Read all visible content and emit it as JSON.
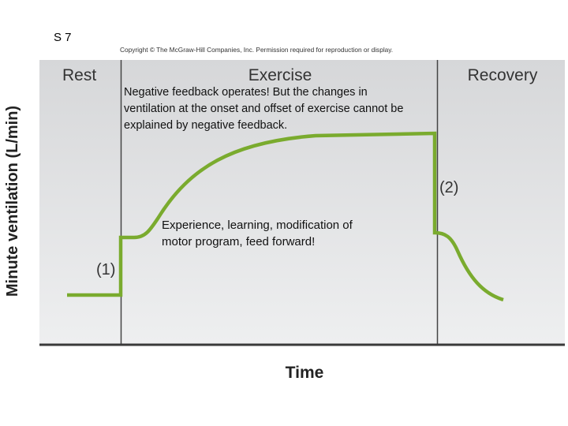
{
  "slide_label": "S 7",
  "copyright": "Copyright © The McGraw-Hill Companies, Inc. Permission required for reproduction or display.",
  "figure": {
    "y_axis_label": "Minute ventilation (L/min)",
    "x_axis_label": "Time",
    "phases": [
      "Rest",
      "Exercise",
      "Recovery"
    ],
    "markers": [
      "(1)",
      "(2)"
    ]
  },
  "annotations": {
    "top": [
      "Negative feedback operates! But the changes in",
      "ventilation at the onset and offset of exercise cannot be",
      "explained by negative feedback."
    ],
    "middle": [
      "Experience, learning, modification of",
      "motor program, feed forward!"
    ]
  }
}
